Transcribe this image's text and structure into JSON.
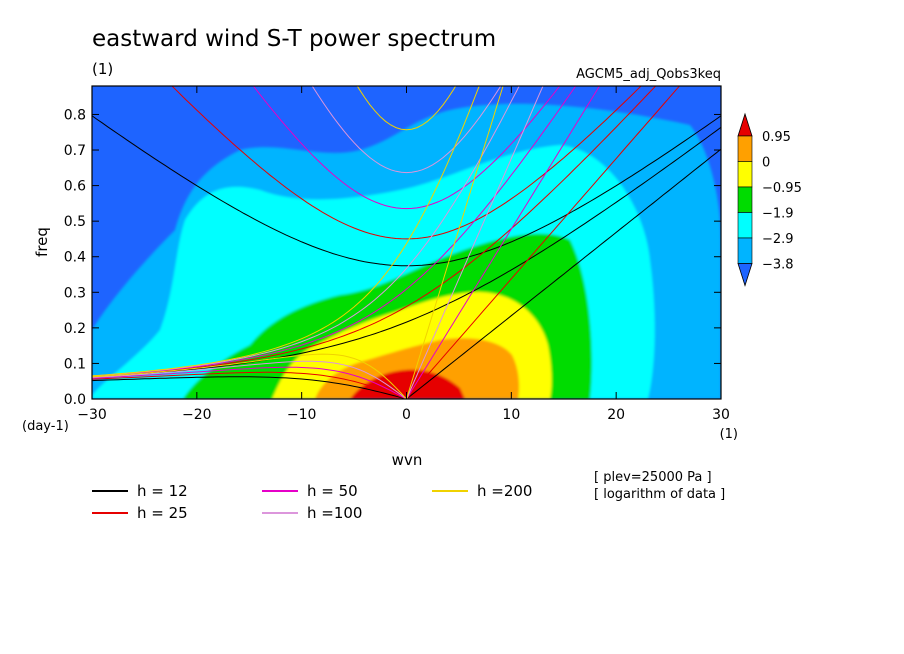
{
  "chart_data": {
    "type": "heatmap",
    "title": "eastward wind S-T power spectrum",
    "subtitle_left": "(1)",
    "subtitle_right": "AGCM5_adj_Qobs3keq",
    "xlabel": "wvn",
    "ylabel": "freq",
    "x_unit": "(1)",
    "y_unit": "(day-1)",
    "xlim": [
      -30,
      30
    ],
    "ylim": [
      0,
      0.88
    ],
    "xticks": [
      -30,
      -20,
      -10,
      0,
      10,
      20,
      30
    ],
    "yticks": [
      0.0,
      0.1,
      0.2,
      0.3,
      0.4,
      0.5,
      0.6,
      0.7,
      0.8
    ],
    "colorbar": {
      "levels": [
        0.95,
        0,
        -0.95,
        -1.9,
        -2.9,
        -3.8
      ],
      "level_labels": [
        "0.95",
        "0",
        "−0.95",
        "−1.9",
        "−2.9",
        "−3.8"
      ],
      "colors": [
        "#e60000",
        "#ffa000",
        "#ffff00",
        "#00dc00",
        "#00ffff",
        "#00b4ff",
        "#1e64ff"
      ]
    },
    "contour_fill_regions": [
      {
        "level": "above 0.95",
        "color": "#e60000",
        "center": [
          3,
          0.03
        ]
      },
      {
        "level": "0 to 0.95",
        "color": "#ffa000",
        "center": [
          1,
          0.05
        ]
      },
      {
        "level": "-0.95 to 0",
        "color": "#ffff00",
        "center": [
          2,
          0.1
        ]
      },
      {
        "level": "-1.9 to -0.95",
        "color": "#00dc00",
        "center": [
          4,
          0.2
        ]
      },
      {
        "level": "-2.9 to -1.9",
        "color": "#00ffff",
        "center": [
          2,
          0.35
        ]
      },
      {
        "level": "-3.8 to -2.9",
        "color": "#00b4ff",
        "center": [
          0,
          0.55
        ]
      },
      {
        "level": "below -3.8",
        "color": "#1e64ff",
        "center": [
          0,
          0.85
        ]
      }
    ],
    "dispersion_curves": [
      {
        "name": "h = 12",
        "h": 12,
        "color": "#000000"
      },
      {
        "name": "h = 25",
        "h": 25,
        "color": "#e60000"
      },
      {
        "name": "h = 50",
        "h": 50,
        "color": "#e600c8"
      },
      {
        "name": "h =100",
        "h": 100,
        "color": "#dc96dc"
      },
      {
        "name": "h =200",
        "h": 200,
        "color": "#f0d200"
      }
    ],
    "annotations": [
      "[ plev=25000 Pa ]",
      "[ logarithm of data ]"
    ]
  }
}
